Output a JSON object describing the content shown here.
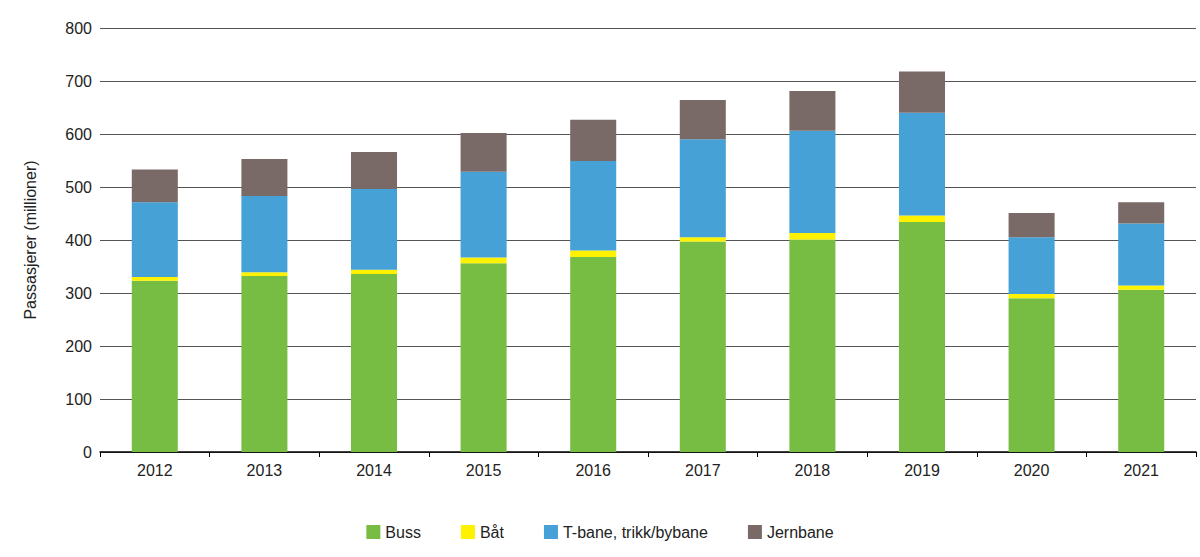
{
  "chart_data": {
    "type": "bar",
    "stacked": true,
    "grid": true,
    "legend": "bottom",
    "y_label": "Passasjerer (millioner)",
    "categories": [
      "2012",
      "2013",
      "2014",
      "2015",
      "2016",
      "2017",
      "2018",
      "2019",
      "2020",
      "2021"
    ],
    "series": [
      {
        "name": "Buss",
        "color": "#77bd43",
        "values": [
          323,
          332,
          336,
          356,
          368,
          397,
          401,
          434,
          290,
          306
        ]
      },
      {
        "name": "Båt",
        "color": "#fff200",
        "values": [
          7,
          7,
          8,
          11,
          12,
          8,
          12,
          12,
          8,
          8
        ]
      },
      {
        "name": "T-bane, trikk/bybane",
        "color": "#45a1d6",
        "values": [
          141,
          144,
          152,
          162,
          169,
          185,
          193,
          194,
          107,
          117
        ]
      },
      {
        "name": "Jernbane",
        "color": "#7a6a67",
        "values": [
          62,
          70,
          70,
          73,
          78,
          74,
          75,
          78,
          46,
          40
        ]
      }
    ],
    "ylim": [
      0,
      800
    ],
    "yticks": [
      0,
      100,
      200,
      300,
      400,
      500,
      600,
      700,
      800
    ]
  }
}
